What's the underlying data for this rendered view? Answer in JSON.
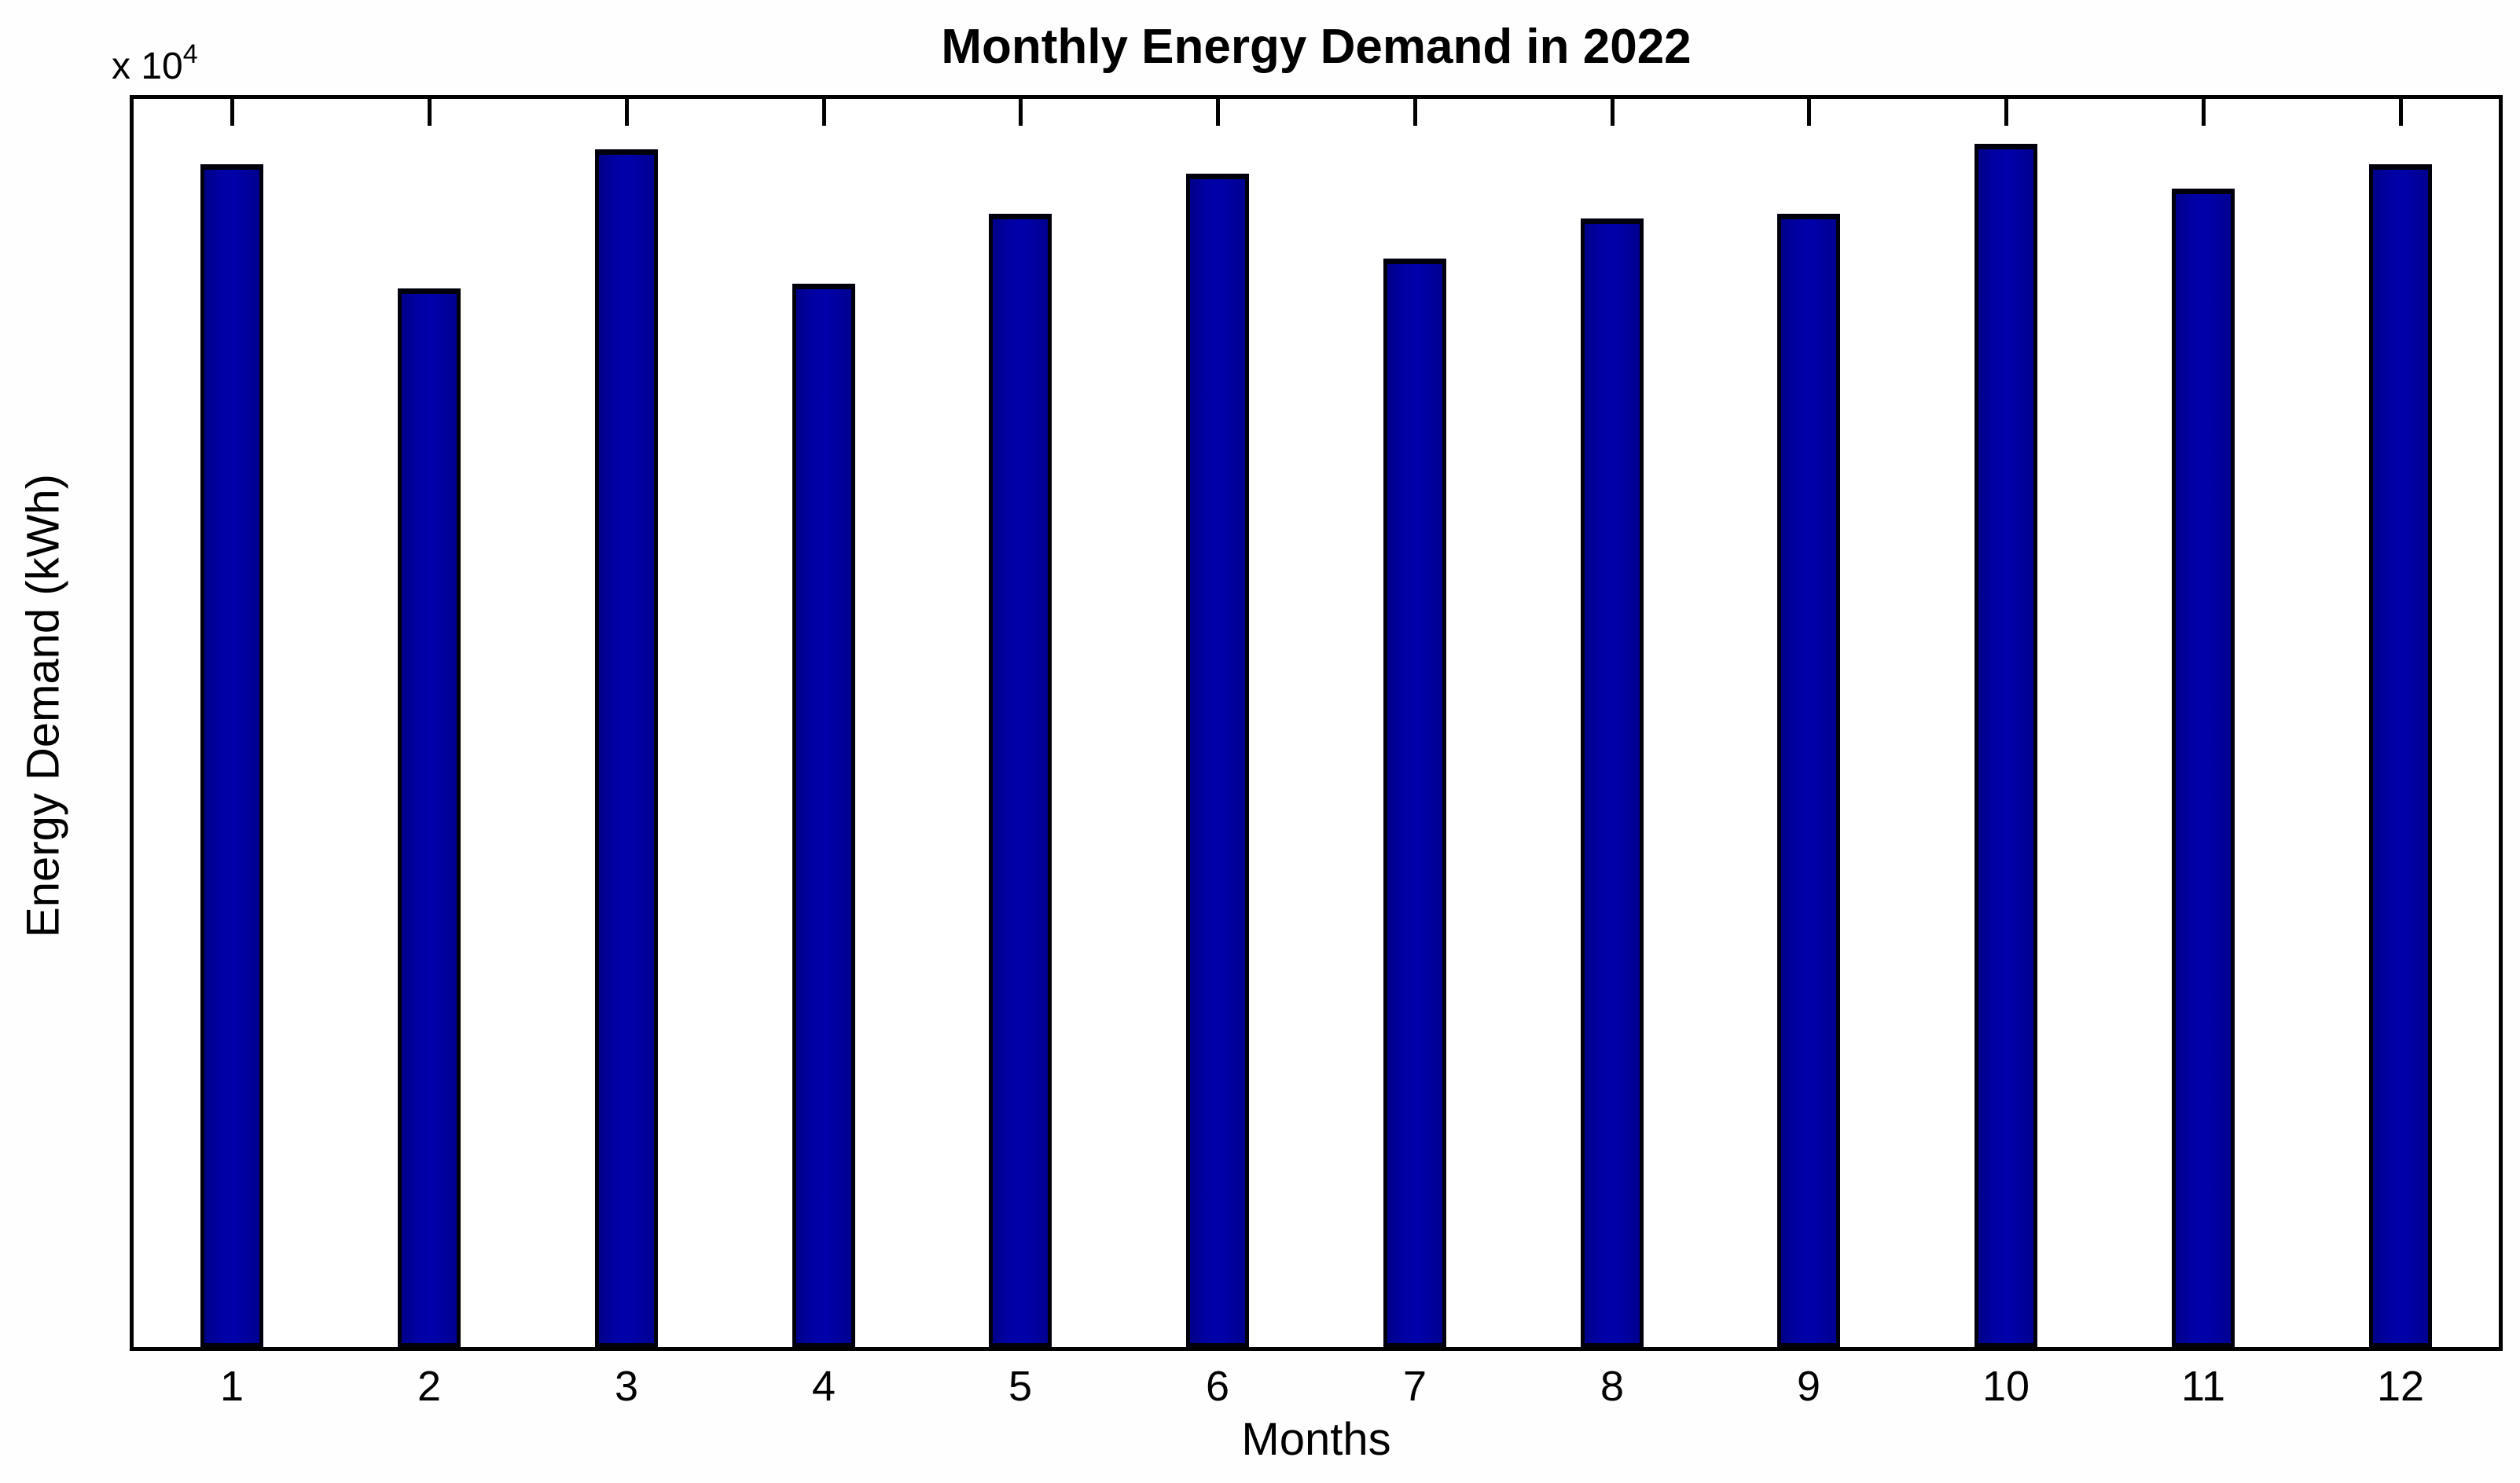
{
  "chart_data": {
    "type": "bar",
    "title": "Monthly Energy Demand in 2022",
    "xlabel": "Months",
    "ylabel": "Energy Demand (kWh)",
    "y_scale_label": {
      "prefix": "x 10",
      "exponent": "4"
    },
    "categories": [
      "1",
      "2",
      "3",
      "4",
      "5",
      "6",
      "7",
      "8",
      "9",
      "10",
      "11",
      "12"
    ],
    "values": [
      23700,
      21200,
      24000,
      21300,
      22700,
      23500,
      21800,
      22600,
      22700,
      24100,
      23200,
      23700
    ],
    "ylim": [
      0,
      25000
    ],
    "xlim": [
      0.5,
      12.5
    ],
    "y_tick_labels_visible": false,
    "grid": false,
    "legend_position": "none",
    "tick_direction": "in",
    "bar_width_fraction": 0.32,
    "bar_color": "#0000A0",
    "bar_edge_color": "#000000",
    "axis_color": "#000000",
    "background_color": "#FFFFFF"
  }
}
